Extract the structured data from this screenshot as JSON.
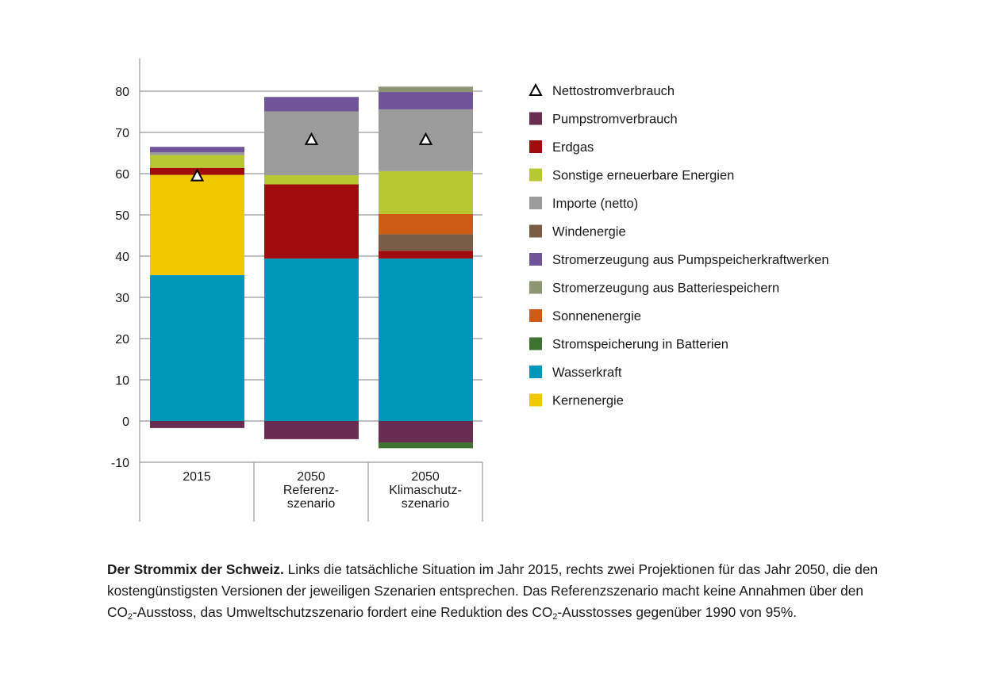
{
  "chart_data": {
    "type": "bar",
    "stacked": true,
    "categories": [
      [
        "2015"
      ],
      [
        "2050",
        "Referenz-",
        "szenario"
      ],
      [
        "2050",
        "Klimaschutz-",
        "szenario"
      ]
    ],
    "ylim": [
      -10,
      88
    ],
    "yticks": [
      -10,
      0,
      10,
      20,
      30,
      40,
      50,
      60,
      70,
      80
    ],
    "grid": true,
    "legend_position": "right",
    "series": [
      {
        "name": "Pumpstromverbrauch",
        "color": "#6a2d52",
        "values": [
          -1.7,
          -4.4,
          -5.2
        ]
      },
      {
        "name": "Erdgas",
        "color": "#a00c0e",
        "values": [
          1.7,
          18.0,
          1.9
        ]
      },
      {
        "name": "Sonstige erneuerbare Energien",
        "color": "#b8c832",
        "values": [
          3.1,
          2.2,
          10.4
        ]
      },
      {
        "name": "Importe (netto)",
        "color": "#9c9b9b",
        "values": [
          0.7,
          15.5,
          15.0
        ]
      },
      {
        "name": "Windenergie",
        "color": "#7a5c45",
        "values": [
          0,
          0,
          4.0
        ]
      },
      {
        "name": "Stromerzeugung aus Pumpspeicherkraftwerken",
        "color": "#6f5499",
        "values": [
          1.3,
          3.5,
          4.2
        ]
      },
      {
        "name": "Stromerzeugung aus Batteriespeichern",
        "color": "#8c9673",
        "values": [
          0,
          0,
          1.3
        ]
      },
      {
        "name": "Sonnenenergie",
        "color": "#ce5a16",
        "values": [
          0,
          0,
          4.9
        ]
      },
      {
        "name": "Stromspeicherung in Batterien",
        "color": "#3f7331",
        "values": [
          0,
          0,
          -1.4
        ]
      },
      {
        "name": "Wasserkraft",
        "color": "#0097bb",
        "values": [
          35.4,
          39.4,
          39.4
        ]
      },
      {
        "name": "Kernenergie",
        "color": "#f0c800",
        "values": [
          24.3,
          0,
          0
        ]
      }
    ],
    "stack_order_positive": [
      "Wasserkraft",
      "Kernenergie",
      "Erdgas",
      "Windenergie",
      "Sonnenenergie",
      "Sonstige erneuerbare Energien",
      "Importe (netto)",
      "Stromerzeugung aus Pumpspeicherkraftwerken",
      "Stromerzeugung aus Batteriespeichern"
    ],
    "stack_order_negative": [
      "Pumpstromverbrauch",
      "Stromspeicherung in Batterien"
    ],
    "markers": {
      "name": "Nettostromverbrauch",
      "symbol": "triangle",
      "values": [
        59.5,
        68.3,
        68.3
      ]
    },
    "legend_order": [
      "Nettostromverbrauch",
      "Pumpstromverbrauch",
      "Erdgas",
      "Sonstige erneuerbare Energien",
      "Importe (netto)",
      "Windenergie",
      "Stromerzeugung aus Pumpspeicherkraftwerken",
      "Stromerzeugung aus Batteriespeichern",
      "Sonnenenergie",
      "Stromspeicherung in Batterien",
      "Wasserkraft",
      "Kernenergie"
    ]
  },
  "caption": {
    "title": "Der Strommix der Schweiz.",
    "part1": " Links die tatsächliche Situation im Jahr 2015, rechts zwei Projektionen für das Jahr 2050, die den kostengünstigsten Versionen der jeweiligen Szenarien entsprechen. Das Referenzszenario macht keine Annahmen über den CO",
    "sub1": "2",
    "part2": "-Ausstoss, das Umweltschutzszenario fordert eine Reduktion des CO",
    "sub2": "2",
    "part3": "-Ausstosses gegenüber 1990 von 95%."
  }
}
